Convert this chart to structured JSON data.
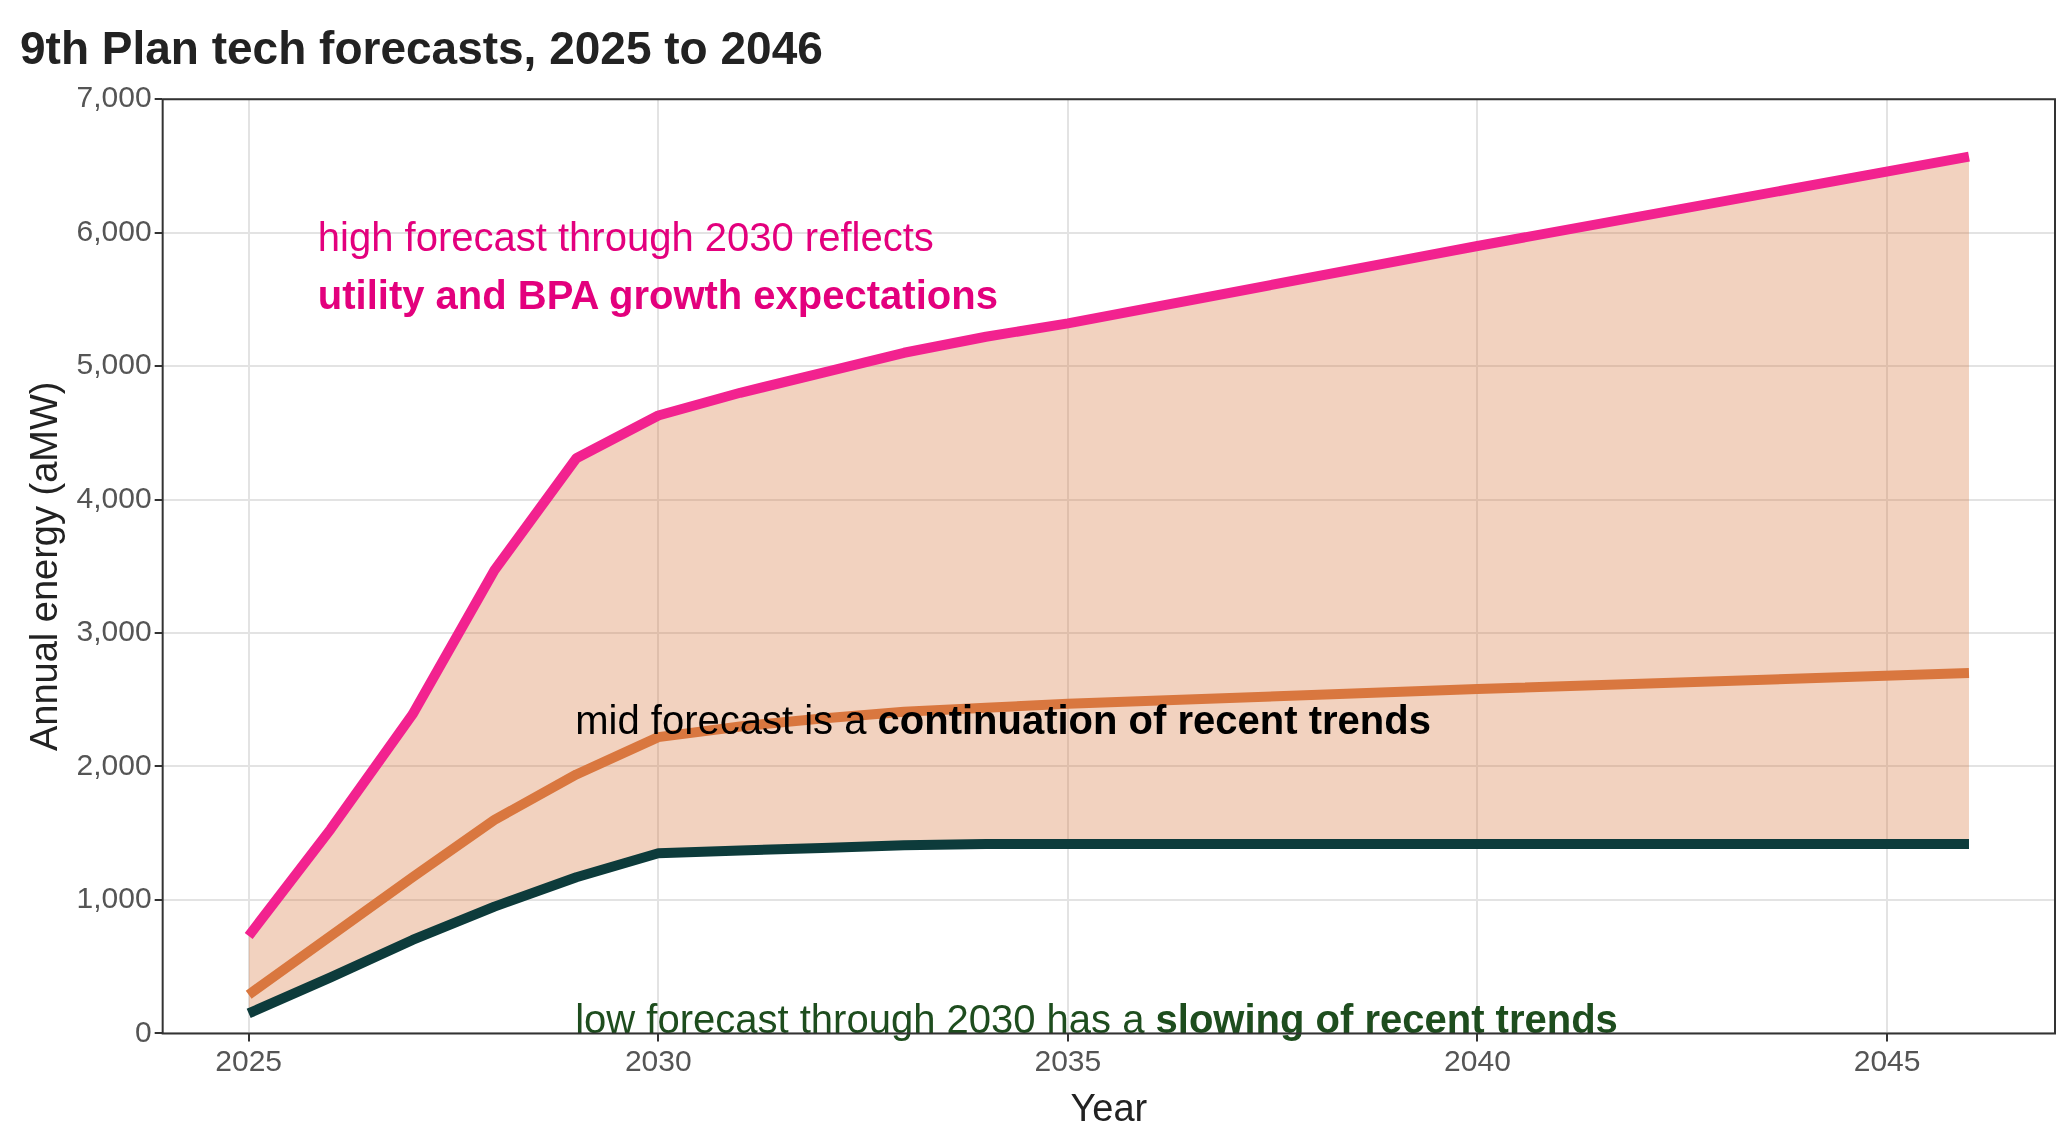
{
  "chart_data": {
    "type": "line",
    "title": "9th Plan tech forecasts, 2025 to 2046",
    "xlabel": "Year",
    "ylabel": "Annual energy (aMW)",
    "x": [
      2025,
      2026,
      2027,
      2028,
      2029,
      2030,
      2031,
      2032,
      2033,
      2034,
      2035,
      2040,
      2046
    ],
    "series": [
      {
        "color": "#0d3b3b",
        "values": [
          150,
          420,
          700,
          950,
          1170,
          1350,
          1370,
          1390,
          1410,
          1420,
          1420,
          1420,
          1420
        ]
      },
      {
        "color": "#d9773f",
        "values": [
          290,
          730,
          1170,
          1600,
          1940,
          2220,
          2300,
          2360,
          2410,
          2440,
          2470,
          2580,
          2700
        ],
        "lower": [
          150,
          420,
          700,
          950,
          1170,
          1350,
          1370,
          1390,
          1410,
          1420,
          1420,
          1420,
          1420
        ],
        "upper": [
          730,
          1530,
          2390,
          3470,
          4310,
          4630,
          4800,
          4950,
          5100,
          5220,
          5320,
          5900,
          6570
        ]
      },
      {
        "color": "#f2228f",
        "values": [
          730,
          1530,
          2390,
          3470,
          4310,
          4630,
          4800,
          4950,
          5100,
          5220,
          5320,
          5900,
          6570
        ]
      }
    ],
    "xlim": [
      2023.95,
      2047.05
    ],
    "xticks": [
      2025,
      2030,
      2035,
      2040,
      2045
    ],
    "ylim": [
      0,
      7000
    ],
    "yticks": [
      0,
      {
        "value": 1000,
        "label": "1,000"
      },
      {
        "value": 2000,
        "label": "2,000"
      },
      {
        "value": 3000,
        "label": "3,000"
      },
      {
        "value": 4000,
        "label": "4,000"
      },
      {
        "value": 5000,
        "label": "5,000"
      },
      {
        "value": 6000,
        "label": "6,000"
      },
      {
        "value": 7000,
        "label": "7,000"
      }
    ],
    "grid": true,
    "legend": false,
    "marker": "none",
    "line_style": "solid",
    "annotations": [
      "high forecast through 2030 reflects",
      "utility and BPA growth expectations",
      "mid forecast is a ",
      "continuation of recent trends",
      "low forecast through 2030 has a ",
      "slowing of recent trends"
    ]
  }
}
